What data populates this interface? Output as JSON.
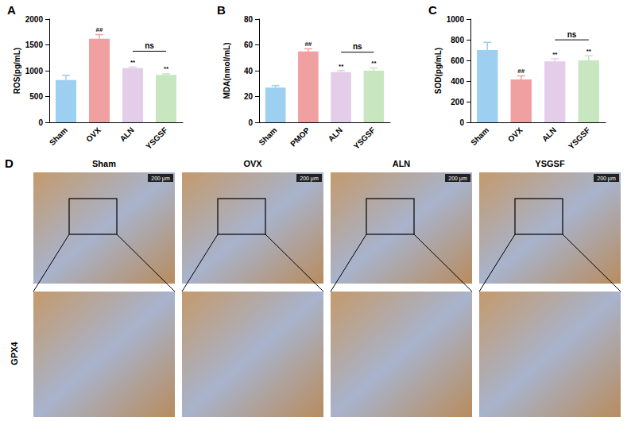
{
  "chart_data": [
    {
      "type": "bar",
      "letter": "A",
      "ylabel": "ROS(pg/mL)",
      "categories": [
        "Sham",
        "OVX",
        "ALN",
        "YSGSF"
      ],
      "values": [
        820,
        1620,
        1050,
        920
      ],
      "errors": [
        90,
        80,
        20,
        20
      ],
      "colors": [
        "#9dcff0",
        "#f0a0a0",
        "#e3cde8",
        "#c8e6c0"
      ],
      "ylim": [
        0,
        2000
      ],
      "yticks": [
        0,
        500,
        1000,
        1500,
        2000
      ],
      "grid": false,
      "annotations": [
        {
          "category": "OVX",
          "text": "##"
        },
        {
          "category": "ALN",
          "text": "**"
        },
        {
          "category": "YSGSF",
          "text": "**"
        }
      ],
      "brackets": [
        {
          "from": "ALN",
          "to": "YSGSF",
          "text": "ns"
        }
      ]
    },
    {
      "type": "bar",
      "letter": "B",
      "ylabel": "MDA(nmol/mL)",
      "categories": [
        "Sham",
        "PMOP",
        "ALN",
        "YSGSF"
      ],
      "values": [
        27,
        55,
        39,
        40
      ],
      "errors": [
        1.5,
        2,
        1,
        2
      ],
      "colors": [
        "#9dcff0",
        "#f0a0a0",
        "#e3cde8",
        "#c8e6c0"
      ],
      "ylim": [
        0,
        80
      ],
      "yticks": [
        0,
        20,
        40,
        60,
        80
      ],
      "grid": false,
      "annotations": [
        {
          "category": "PMOP",
          "text": "##"
        },
        {
          "category": "ALN",
          "text": "**"
        },
        {
          "category": "YSGSF",
          "text": "**"
        }
      ],
      "brackets": [
        {
          "from": "ALN",
          "to": "YSGSF",
          "text": "ns"
        }
      ]
    },
    {
      "type": "bar",
      "letter": "C",
      "ylabel": "SOD(pg/mL)",
      "categories": [
        "Sham",
        "OVX",
        "ALN",
        "YSGSF"
      ],
      "values": [
        700,
        415,
        590,
        600
      ],
      "errors": [
        75,
        35,
        25,
        45
      ],
      "colors": [
        "#9dcff0",
        "#f0a0a0",
        "#e3cde8",
        "#c8e6c0"
      ],
      "ylim": [
        0,
        1000
      ],
      "yticks": [
        0,
        200,
        400,
        600,
        800,
        1000
      ],
      "grid": false,
      "annotations": [
        {
          "category": "OVX",
          "text": "##"
        },
        {
          "category": "ALN",
          "text": "**"
        },
        {
          "category": "YSGSF",
          "text": "**"
        }
      ],
      "brackets": [
        {
          "from": "ALN",
          "to": "YSGSF",
          "text": "ns"
        }
      ]
    }
  ],
  "image_panel": {
    "letter": "D",
    "row_label": "GPX4",
    "columns": [
      "Sham",
      "OVX",
      "ALN",
      "YSGSF"
    ],
    "scale_bar": "200 μm"
  }
}
